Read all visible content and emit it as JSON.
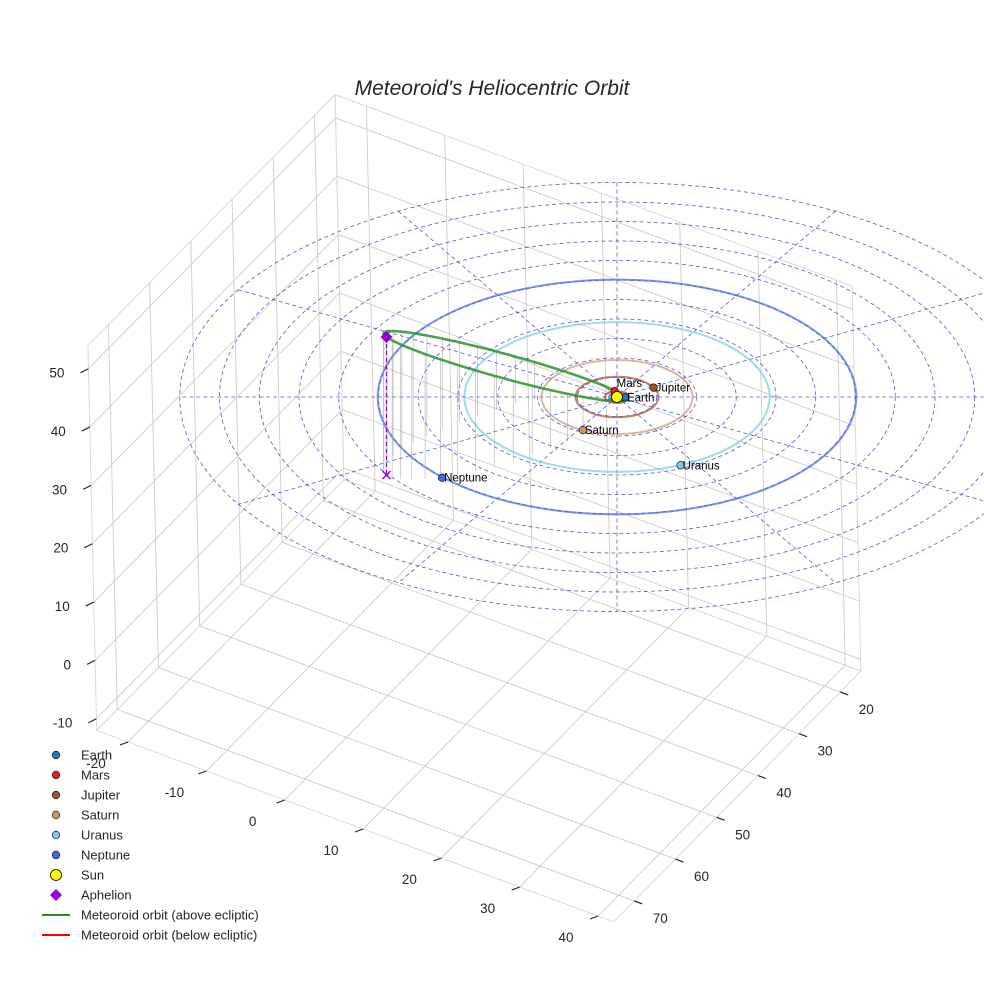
{
  "chart_data": {
    "type": "line",
    "projection": "3d",
    "title": "Meteoroid's Heliocentric Orbit",
    "xlabel": "",
    "ylabel": "",
    "zlabel": "",
    "x_ticks": [
      -20,
      -10,
      0,
      10,
      20,
      30,
      40
    ],
    "y_ticks": [
      20,
      30,
      40,
      50,
      60,
      70
    ],
    "z_ticks": [
      -10,
      0,
      10,
      20,
      30,
      40,
      50
    ],
    "grid": true,
    "ecliptic_grid": "dashed",
    "planets": [
      {
        "name": "Earth",
        "a": 1.0,
        "color": "#1f77b4",
        "position": [
          1.0,
          -0.1
        ]
      },
      {
        "name": "Mars",
        "a": 1.52,
        "color": "#d62728",
        "position": [
          -0.3,
          1.5
        ]
      },
      {
        "name": "Jupiter",
        "a": 5.2,
        "color": "#a0522d",
        "position": [
          4.6,
          2.4
        ]
      },
      {
        "name": "Saturn",
        "a": 9.5,
        "color": "#c49a6c",
        "position": [
          -4.3,
          -8.5
        ]
      },
      {
        "name": "Uranus",
        "a": 19.2,
        "color": "#7ec8e3",
        "position": [
          8.0,
          -17.5
        ]
      },
      {
        "name": "Neptune",
        "a": 30.1,
        "color": "#4169e1",
        "position": [
          -22.0,
          -20.7
        ]
      }
    ],
    "sun": {
      "name": "Sun",
      "position": [
        0,
        0,
        0
      ],
      "color": "#ffff00"
    },
    "aphelion": {
      "name": "Aphelion",
      "position": [
        -29.0,
        -20.0,
        23.0
      ],
      "color": "#9400d3"
    },
    "meteoroid_orbit": {
      "above_label": "Meteoroid orbit (above ecliptic)",
      "below_label": "Meteoroid orbit (below ecliptic)",
      "above_color": "#228b22",
      "below_color": "#ff0000",
      "perihelion": [
        0.8,
        0.4,
        0.0
      ],
      "aphelion": [
        -29.0,
        -20.0,
        23.0
      ],
      "minor_semi_axis": 4.5
    },
    "legend": {
      "placement": "bottom-left",
      "entries": [
        {
          "label": "Earth",
          "marker": "circle",
          "color": "#1f77b4"
        },
        {
          "label": "Mars",
          "marker": "circle",
          "color": "#d62728"
        },
        {
          "label": "Jupiter",
          "marker": "circle",
          "color": "#a0522d"
        },
        {
          "label": "Saturn",
          "marker": "circle",
          "color": "#c49a6c"
        },
        {
          "label": "Uranus",
          "marker": "circle",
          "color": "#7ec8e3"
        },
        {
          "label": "Neptune",
          "marker": "circle",
          "color": "#4169e1"
        },
        {
          "label": "Sun",
          "marker": "sun",
          "color": "#ffff00"
        },
        {
          "label": "Aphelion",
          "marker": "diamond",
          "color": "#9400d3"
        },
        {
          "label": "Meteoroid orbit (above ecliptic)",
          "marker": "line",
          "color": "#228b22"
        },
        {
          "label": "Meteoroid orbit (below ecliptic)",
          "marker": "line",
          "color": "#ff0000"
        }
      ]
    }
  }
}
